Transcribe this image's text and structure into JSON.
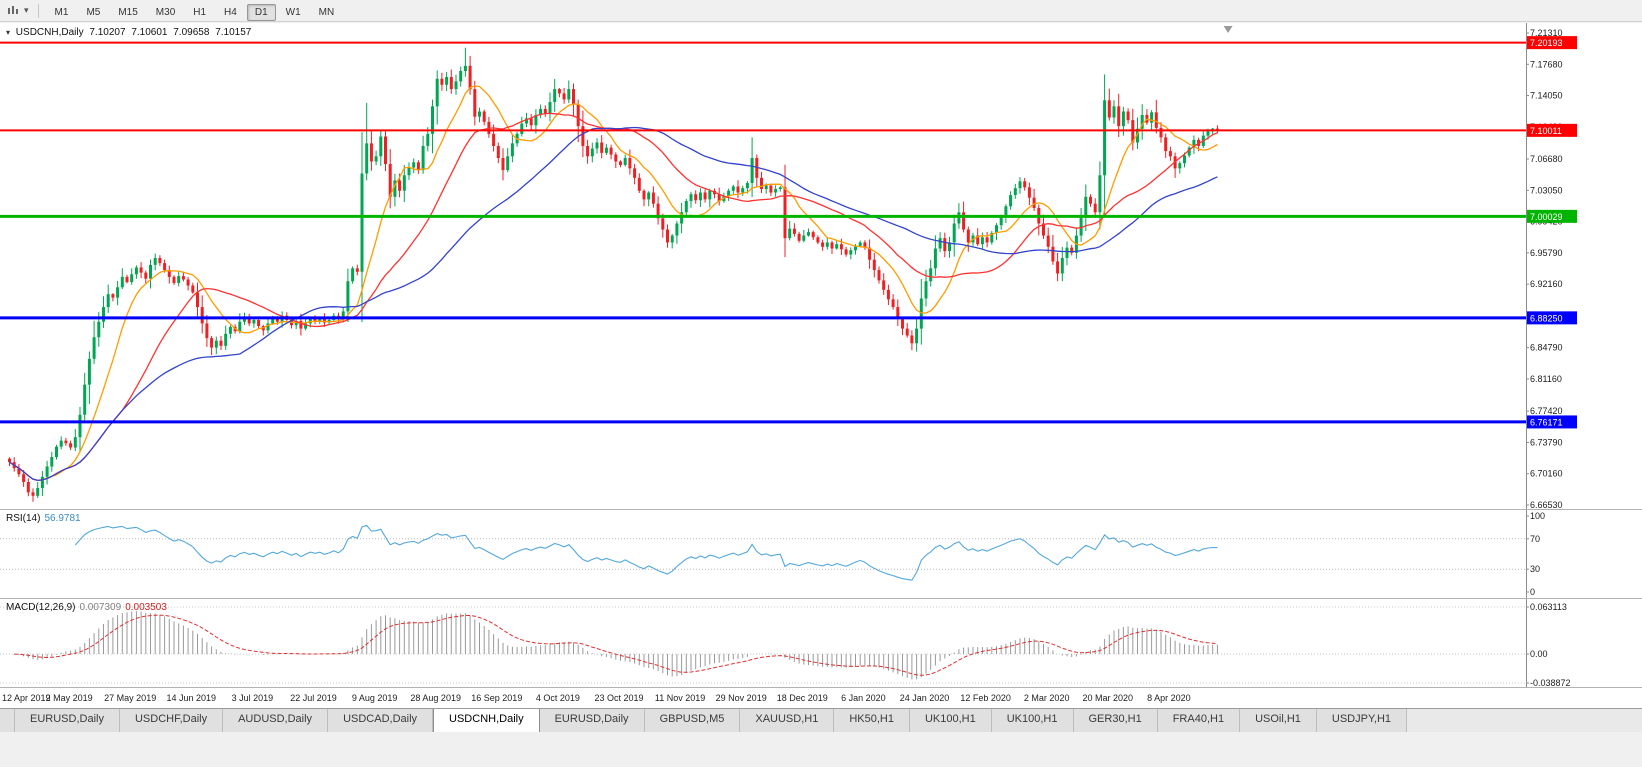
{
  "toolbar": {
    "timeframes": [
      "M1",
      "M5",
      "M15",
      "M30",
      "H1",
      "H4",
      "D1",
      "W1",
      "MN"
    ],
    "active_timeframe": "D1"
  },
  "chart_data": {
    "type": "candlestick",
    "title": "USDCNH,Daily",
    "symbol": "USDCNH",
    "timeframe": "Daily",
    "ohlc_display": {
      "open": "7.10207",
      "high": "7.10601",
      "low": "7.09658",
      "close": "7.10157"
    },
    "price_axis": {
      "min": 6.6653,
      "max": 7.2131,
      "ticks": [
        "7.21310",
        "7.17680",
        "7.14050",
        "7.10420",
        "7.06680",
        "7.03050",
        "6.99420",
        "6.95790",
        "6.92160",
        "6.88530",
        "6.84790",
        "6.81160",
        "6.77420",
        "6.73790",
        "6.70160",
        "6.66530"
      ]
    },
    "levels": [
      {
        "price": 7.20193,
        "label": "7.20193",
        "color": "#ff0000",
        "width": 2
      },
      {
        "price": 7.10011,
        "label": "7.10011",
        "color": "#ff0000",
        "width": 2
      },
      {
        "price": 7.00029,
        "label": "7.00029",
        "color": "#00b400",
        "width": 3
      },
      {
        "price": 6.8825,
        "label": "6.88250",
        "color": "#0000ff",
        "width": 3
      },
      {
        "price": 6.76171,
        "label": "6.76171",
        "color": "#0000ff",
        "width": 3
      }
    ],
    "date_labels": [
      "12 Apr 2019",
      "2 May 2019",
      "27 May 2019",
      "14 Jun 2019",
      "3 Jul 2019",
      "22 Jul 2019",
      "9 Aug 2019",
      "28 Aug 2019",
      "16 Sep 2019",
      "4 Oct 2019",
      "23 Oct 2019",
      "11 Nov 2019",
      "29 Nov 2019",
      "18 Dec 2019",
      "6 Jan 2020",
      "24 Jan 2020",
      "12 Feb 2020",
      "2 Mar 2020",
      "20 Mar 2020",
      "8 Apr 2020"
    ],
    "candles_per_label": 13,
    "closes": [
      6.715,
      6.708,
      6.701,
      6.692,
      6.68,
      6.676,
      6.685,
      6.698,
      6.71,
      6.721,
      6.733,
      6.74,
      6.737,
      6.732,
      6.744,
      6.77,
      6.805,
      6.835,
      6.86,
      6.878,
      6.895,
      6.91,
      6.906,
      6.918,
      6.93,
      6.924,
      6.933,
      6.941,
      6.935,
      6.928,
      6.944,
      6.952,
      6.946,
      6.938,
      6.93,
      6.923,
      6.931,
      6.927,
      6.92,
      6.912,
      6.895,
      6.876,
      6.859,
      6.848,
      6.856,
      6.85,
      6.864,
      6.872,
      6.867,
      6.878,
      6.883,
      6.876,
      6.88,
      6.873,
      6.868,
      6.876,
      6.882,
      6.878,
      6.885,
      6.88,
      6.874,
      6.879,
      6.87,
      6.876,
      6.882,
      6.879,
      6.882,
      6.877,
      6.88,
      6.885,
      6.881,
      6.89,
      6.925,
      6.94,
      6.936,
      7.05,
      7.085,
      7.064,
      7.07,
      7.093,
      7.061,
      7.023,
      7.042,
      7.03,
      7.048,
      7.057,
      7.063,
      7.054,
      7.082,
      7.096,
      7.128,
      7.16,
      7.153,
      7.162,
      7.148,
      7.157,
      7.169,
      7.175,
      7.148,
      7.116,
      7.122,
      7.11,
      7.096,
      7.082,
      7.068,
      7.054,
      7.07,
      7.085,
      7.096,
      7.108,
      7.114,
      7.106,
      7.118,
      7.125,
      7.12,
      7.133,
      7.148,
      7.143,
      7.136,
      7.148,
      7.13,
      7.105,
      7.082,
      7.07,
      7.079,
      7.086,
      7.074,
      7.08,
      7.072,
      7.064,
      7.06,
      7.068,
      7.056,
      7.045,
      7.03,
      7.02,
      7.028,
      7.015,
      6.998,
      6.985,
      6.97,
      6.978,
      6.992,
      7.005,
      7.018,
      7.026,
      7.019,
      7.028,
      7.02,
      7.03,
      7.026,
      7.018,
      7.024,
      7.03,
      7.035,
      7.028,
      7.033,
      7.039,
      7.068,
      7.045,
      7.032,
      7.036,
      7.028,
      7.032,
      7.034,
      6.975,
      6.986,
      6.98,
      6.972,
      6.978,
      6.982,
      6.976,
      6.97,
      6.965,
      6.97,
      6.963,
      6.968,
      6.962,
      6.956,
      6.961,
      6.966,
      6.97,
      6.964,
      6.95,
      6.938,
      6.926,
      6.915,
      6.904,
      6.895,
      6.882,
      6.87,
      6.862,
      6.853,
      6.87,
      6.905,
      6.925,
      6.94,
      6.963,
      6.975,
      6.96,
      6.97,
      6.992,
      7.005,
      6.985,
      6.97,
      6.978,
      6.968,
      6.976,
      6.97,
      6.981,
      6.99,
      7.0,
      7.012,
      7.025,
      7.033,
      7.041,
      7.034,
      7.022,
      7.01,
      6.992,
      6.978,
      6.965,
      6.948,
      6.934,
      6.952,
      6.964,
      6.958,
      6.978,
      7.0,
      7.023,
      7.015,
      7.005,
      7.048,
      7.135,
      7.115,
      7.128,
      7.105,
      7.122,
      7.112,
      7.086,
      7.102,
      7.118,
      7.109,
      7.121,
      7.103,
      7.092,
      7.076,
      7.07,
      7.056,
      7.062,
      7.071,
      7.08,
      7.089,
      7.082,
      7.094,
      7.099,
      7.1021,
      7.1016
    ],
    "wick_overrides": {
      "5": {
        "l": 6.669
      },
      "75": {
        "h": 7.098
      },
      "76": {
        "h": 7.132
      },
      "97": {
        "h": 7.196
      },
      "105": {
        "l": 7.042
      },
      "119": {
        "h": 7.158
      },
      "140": {
        "l": 6.964
      },
      "158": {
        "h": 7.092
      },
      "165": {
        "l": 6.953
      },
      "192": {
        "l": 6.845
      },
      "223": {
        "l": 6.925
      },
      "233": {
        "h": 7.165,
        "l": 7.0
      },
      "248": {
        "l": 7.045
      },
      "257": {
        "h": 7.106,
        "l": 7.0966
      }
    },
    "moving_averages": [
      {
        "period": 10,
        "color": "#ff9c00"
      },
      {
        "period": 25,
        "color": "#ff3232"
      },
      {
        "period": 50,
        "color": "#3344cc"
      }
    ],
    "colors": {
      "up": "#00a651",
      "down": "#ed2024",
      "background": "#ffffff",
      "axis_text": "#1b1b1b"
    }
  },
  "rsi": {
    "name": "RSI(14)",
    "value": "56.9781",
    "period": 14,
    "color": "#55a8dc",
    "ticks": [
      100,
      70,
      30,
      0
    ],
    "guide_levels": [
      70,
      30
    ]
  },
  "macd": {
    "name": "MACD(12,26,9)",
    "value_main": "0.007309",
    "value_signal": "0.003503",
    "fast": 12,
    "slow": 26,
    "signal": 9,
    "hist_color": "#999999",
    "signal_color": "#e03030",
    "ticks": [
      "0.063113",
      "0.00",
      "-0.038872"
    ],
    "max": 0.063113,
    "min": -0.038872
  },
  "tabs": {
    "active_index": 4,
    "items": [
      "EURUSD,Daily",
      "USDCHF,Daily",
      "AUDUSD,Daily",
      "USDCAD,Daily",
      "USDCNH,Daily",
      "EURUSD,Daily",
      "GBPUSD,M5",
      "XAUUSD,H1",
      "HK50,H1",
      "UK100,H1",
      "UK100,H1",
      "GER30,H1",
      "FRA40,H1",
      "USOil,H1",
      "USDJPY,H1"
    ]
  }
}
